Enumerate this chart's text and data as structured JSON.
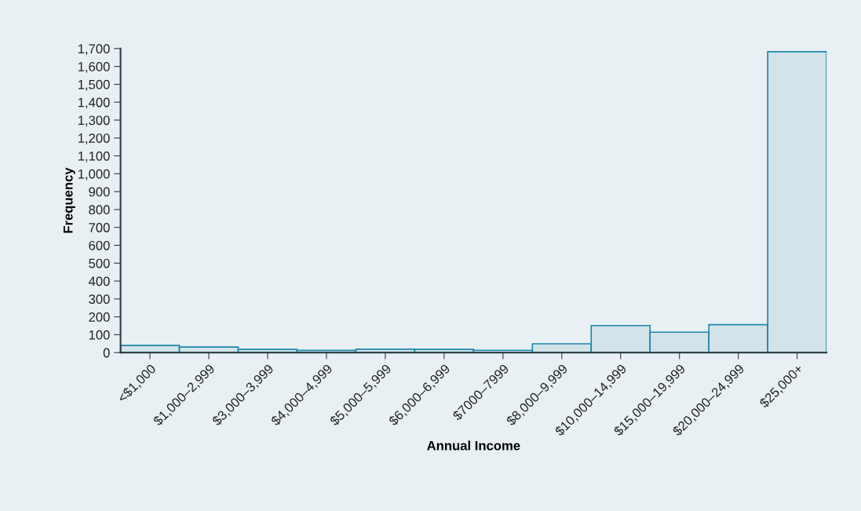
{
  "chart_data": {
    "type": "bar",
    "xlabel": "Annual Income",
    "ylabel": "Frequency",
    "categories": [
      "<$1,000",
      "$1,000–2,999",
      "$3,000–3,999",
      "$4,000–4,999",
      "$5,000–5,999",
      "$6,000–6,999",
      "$7000–7999",
      "$8,000–9,999",
      "$10,000–14,999",
      "$15,000–19,999",
      "$20,000–24,999",
      "$25,000+"
    ],
    "values": [
      40,
      31,
      18,
      12,
      19,
      18,
      13,
      49,
      151,
      114,
      156,
      1682
    ],
    "color": "#d3e3ea",
    "ylim": [
      0,
      1700
    ],
    "yticks": [
      0,
      100,
      200,
      300,
      400,
      500,
      600,
      700,
      800,
      900,
      {
        "value": 1000,
        "label": "1,000"
      },
      {
        "value": 1100,
        "label": "1,100"
      },
      {
        "value": 1200,
        "label": "1,200"
      },
      {
        "value": 1300,
        "label": "1,300"
      },
      {
        "value": 1400,
        "label": "1,400"
      },
      {
        "value": 1500,
        "label": "1,500"
      },
      {
        "value": 1600,
        "label": "1,600"
      },
      {
        "value": 1700,
        "label": "1,700"
      }
    ],
    "grid": false
  }
}
